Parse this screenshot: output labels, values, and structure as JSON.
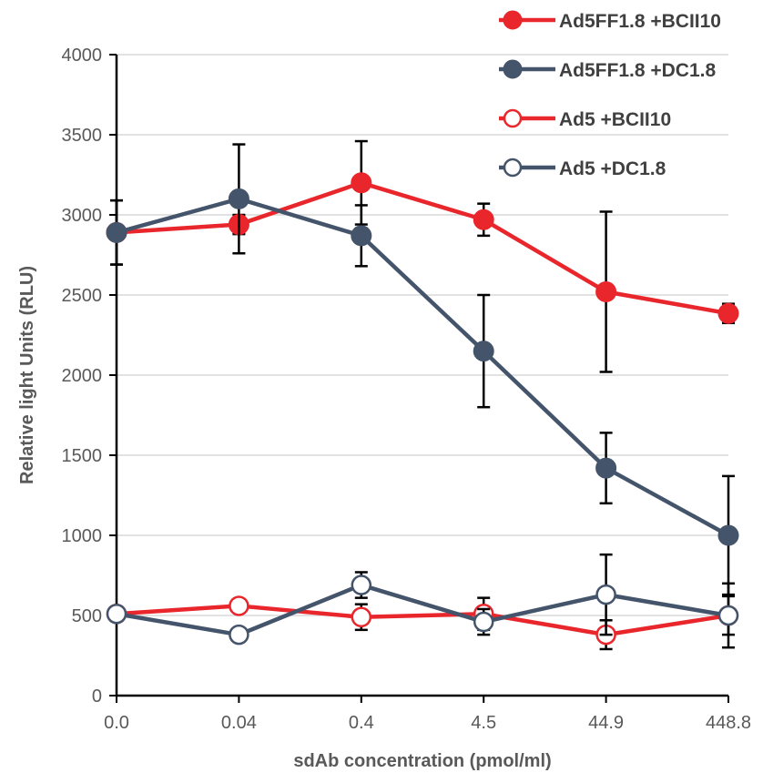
{
  "chart_data": {
    "type": "line",
    "xlabel": "sdAb concentration (pmol/ml)",
    "ylabel": "Relative light Units (RLU)",
    "categories": [
      "0.0",
      "0.04",
      "0.4",
      "4.5",
      "44.9",
      "448.8"
    ],
    "ylim": [
      0,
      4000
    ],
    "yticks": [
      0,
      500,
      1000,
      1500,
      2000,
      2500,
      3000,
      3500,
      4000
    ],
    "grid": "horizontal",
    "legend_position": "top-right",
    "series": [
      {
        "name": "Ad5FF1.8 +BCII10",
        "color": "#e8262b",
        "marker": "filled-circle",
        "values": [
          2890,
          2940,
          3200,
          2970,
          2520,
          2385
        ],
        "error": [
          200,
          60,
          260,
          100,
          500,
          60
        ]
      },
      {
        "name": "Ad5FF1.8 +DC1.8",
        "color": "#44546a",
        "marker": "filled-circle",
        "values": [
          2890,
          3100,
          2870,
          2150,
          1420,
          1000
        ],
        "error": [
          200,
          340,
          190,
          350,
          220,
          370
        ]
      },
      {
        "name": "Ad5 +BCII10",
        "color": "#e8262b",
        "marker": "open-circle",
        "values": [
          510,
          560,
          490,
          510,
          380,
          500
        ],
        "error": [
          0,
          0,
          80,
          100,
          90,
          120
        ]
      },
      {
        "name": "Ad5 +DC1.8",
        "color": "#44546a",
        "marker": "open-circle",
        "values": [
          510,
          380,
          690,
          460,
          630,
          500
        ],
        "error": [
          0,
          0,
          80,
          80,
          250,
          200
        ]
      }
    ]
  }
}
